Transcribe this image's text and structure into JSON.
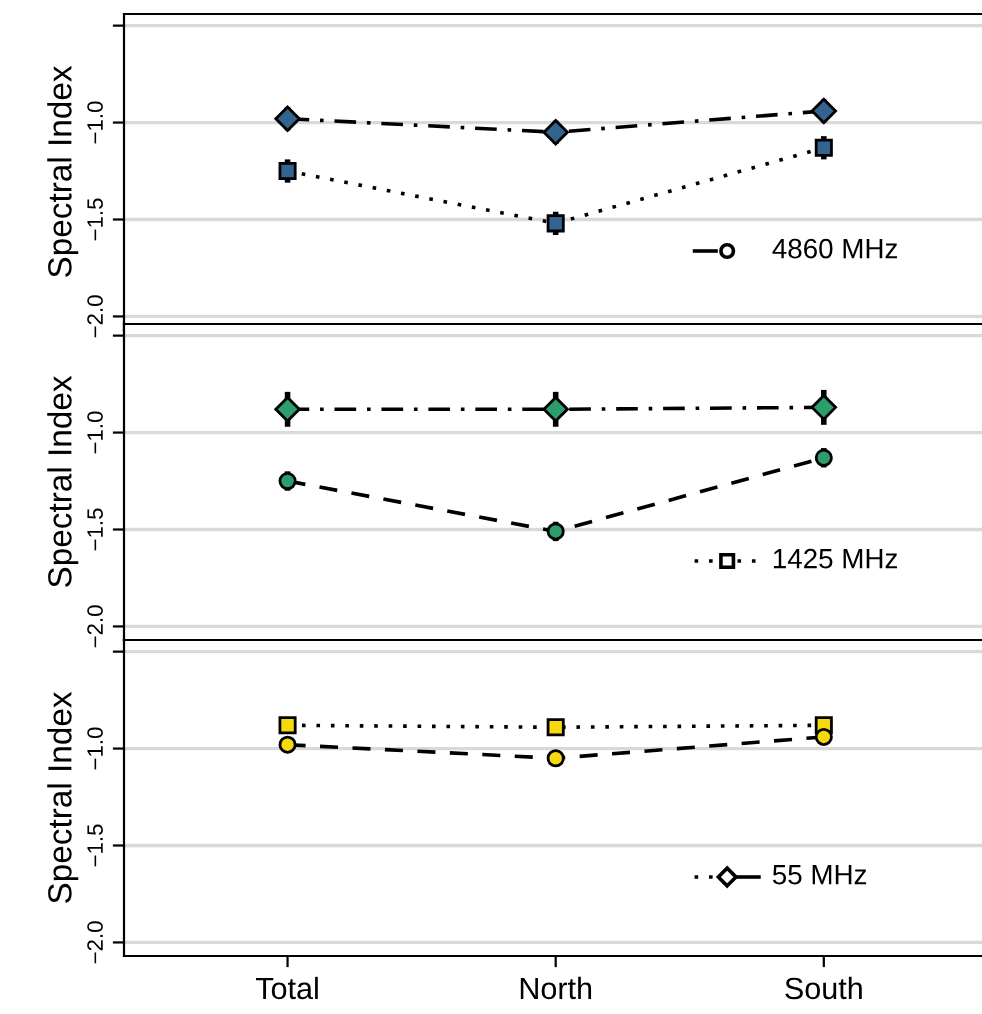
{
  "chart_data": [
    {
      "type": "line",
      "categories": [
        null,
        null,
        null
      ],
      "ylabel": "Spectral Index",
      "ylim": [
        -2.07,
        -0.44
      ],
      "yticks": [
        {
          "value": -2.0,
          "label": "−2.0"
        },
        {
          "value": -1.5,
          "label": "−1.5"
        },
        {
          "value": -1.0,
          "label": "−1.0"
        },
        {
          "value": -0.5,
          "label": null
        }
      ],
      "grid": "y",
      "tick_labels": "y",
      "annotations": [
        "4860 MHz"
      ],
      "series": [
        {
          "color": "#33648f",
          "values": [
            -0.98,
            -1.05,
            -0.94
          ],
          "errors": [
            0.06,
            0.06,
            0.06
          ],
          "marker": "diamond",
          "line_style": "dashdot"
        },
        {
          "color": "#33648f",
          "values": [
            -1.25,
            -1.52,
            -1.13
          ],
          "errors": [
            0.06,
            0.06,
            0.06
          ],
          "marker": "square",
          "line_style": "dotted"
        }
      ]
    },
    {
      "type": "line",
      "categories": [
        null,
        null,
        null
      ],
      "ylabel": "Spectral Index",
      "ylim": [
        -2.07,
        -0.44
      ],
      "yticks": [
        {
          "value": -2.0,
          "label": "−2.0"
        },
        {
          "value": -1.5,
          "label": "−1.5"
        },
        {
          "value": -1.0,
          "label": "−1.0"
        },
        {
          "value": -0.5,
          "label": null
        }
      ],
      "grid": "y",
      "tick_labels": "y",
      "annotations": [
        "1425 MHz"
      ],
      "series": [
        {
          "color": "#2e9d6c",
          "values": [
            -0.88,
            -0.88,
            -0.87
          ],
          "errors": [
            0.09,
            0.09,
            0.09
          ],
          "marker": "diamond",
          "line_style": "dashdot"
        },
        {
          "color": "#2e9d6c",
          "values": [
            -1.25,
            -1.51,
            -1.13
          ],
          "errors": [
            0.05,
            0.05,
            0.05
          ],
          "marker": "circle",
          "line_style": "dashed"
        }
      ]
    },
    {
      "type": "line",
      "categories": [
        "Total",
        "North",
        "South"
      ],
      "ylabel": "Spectral Index",
      "ylim": [
        -2.07,
        -0.44
      ],
      "yticks": [
        {
          "value": -2.0,
          "label": "−2.0"
        },
        {
          "value": -1.5,
          "label": "−1.5"
        },
        {
          "value": -1.0,
          "label": "−1.0"
        },
        {
          "value": -0.5,
          "label": null
        }
      ],
      "grid": "y",
      "annotations": [
        "55 MHz"
      ],
      "series": [
        {
          "color": "#f5d90c",
          "values": [
            -0.88,
            -0.89,
            -0.88
          ],
          "marker": "square",
          "line_style": "dotted"
        },
        {
          "color": "#f5d90c",
          "values": [
            -0.98,
            -1.05,
            -0.94
          ],
          "marker": "circle",
          "line_style": "dashed"
        }
      ]
    }
  ]
}
